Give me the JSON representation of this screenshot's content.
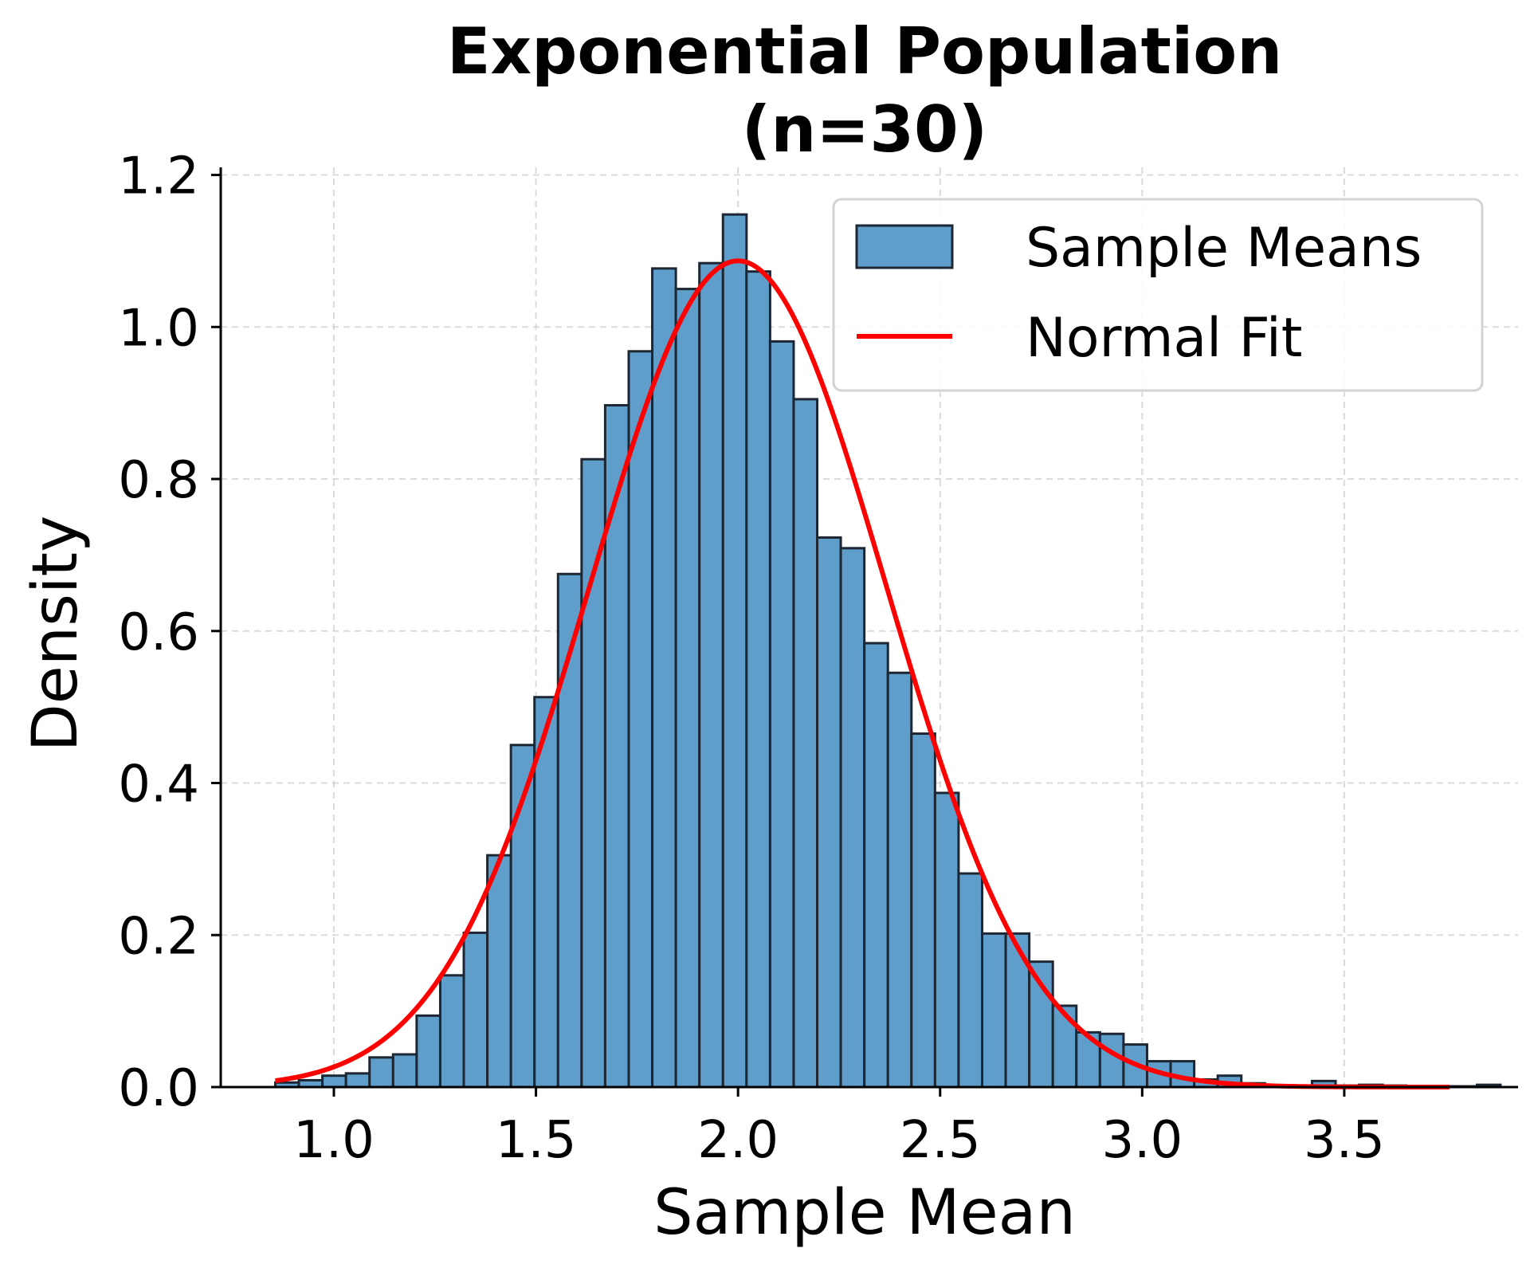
{
  "chart_data": {
    "type": "bar",
    "subtype": "histogram-with-line",
    "title_lines": [
      "Exponential Population",
      "(n=30)"
    ],
    "xlabel": "Sample Mean",
    "ylabel": "Density",
    "xlim": [
      0.72,
      3.93
    ],
    "ylim": [
      0,
      1.21
    ],
    "x_ticks": [
      1.0,
      1.5,
      2.0,
      2.5,
      3.0,
      3.5
    ],
    "x_tick_labels": [
      "1.0",
      "1.5",
      "2.0",
      "2.5",
      "3.0",
      "3.5"
    ],
    "y_ticks": [
      0.0,
      0.2,
      0.4,
      0.6,
      0.8,
      1.0,
      1.2
    ],
    "y_tick_labels": [
      "0.0",
      "0.2",
      "0.4",
      "0.6",
      "0.8",
      "1.0",
      "1.2"
    ],
    "grid": true,
    "legend_position": "top-right",
    "bin_start": 0.855,
    "bin_width": 0.0583,
    "bin_densities": [
      0.006,
      0.009,
      0.015,
      0.018,
      0.039,
      0.043,
      0.094,
      0.147,
      0.203,
      0.305,
      0.45,
      0.513,
      0.675,
      0.826,
      0.897,
      0.968,
      1.077,
      1.05,
      1.084,
      1.148,
      1.073,
      0.981,
      0.905,
      0.723,
      0.709,
      0.584,
      0.545,
      0.465,
      0.387,
      0.281,
      0.202,
      0.202,
      0.165,
      0.107,
      0.072,
      0.07,
      0.056,
      0.034,
      0.034,
      0.01,
      0.015,
      0.005,
      0.002,
      0.001,
      0.008,
      0.002,
      0.003,
      0.002,
      0.001,
      0.001,
      0.001,
      0.003
    ],
    "series": [
      {
        "name": "Sample Means",
        "kind": "histogram",
        "color": "#5f9ecb",
        "edge_color": "#1c2733"
      },
      {
        "name": "Normal Fit",
        "kind": "line",
        "color": "#ff0000",
        "mean": 2.0,
        "sd": 0.367,
        "x_range": [
          0.855,
          3.76
        ]
      }
    ]
  }
}
